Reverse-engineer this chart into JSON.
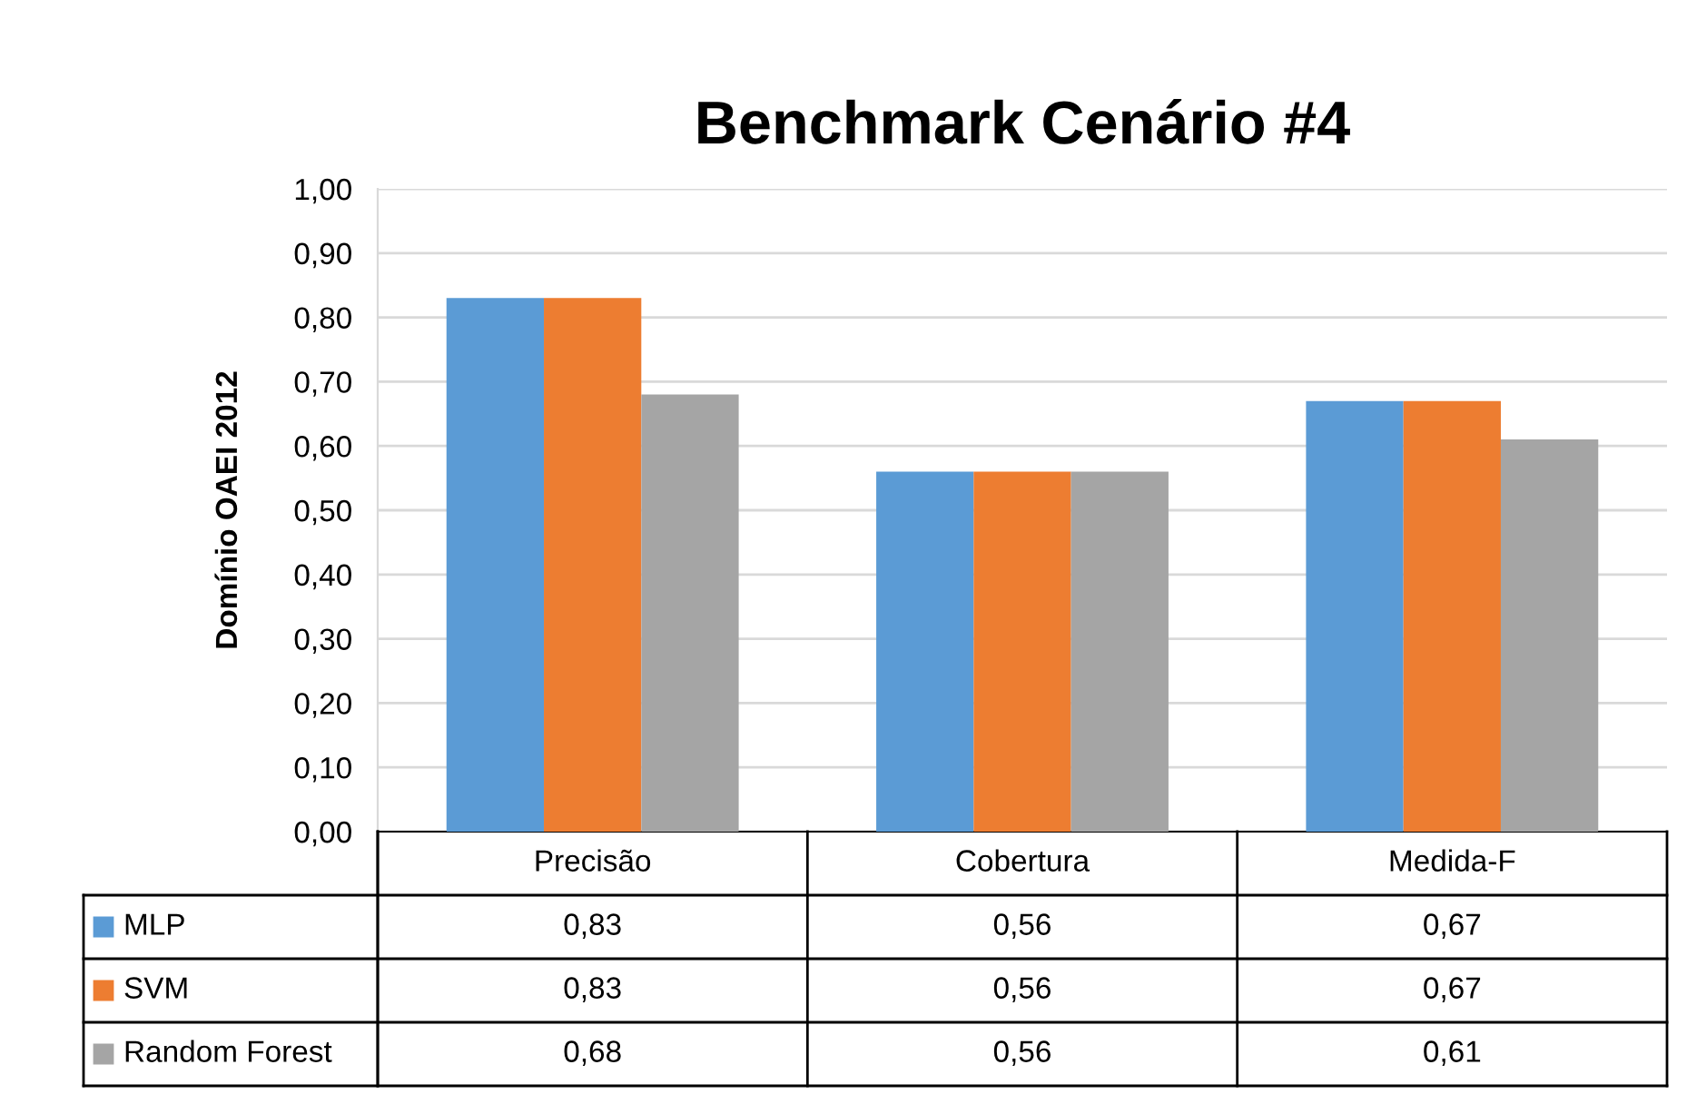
{
  "chart_data": {
    "type": "bar",
    "title": "Benchmark Cenário #4",
    "ylabel": "Domínio OAEI 2012",
    "categories": [
      "Precisão",
      "Cobertura",
      "Medida-F"
    ],
    "series": [
      {
        "name": "MLP",
        "color": "#5b9bd5",
        "values": [
          0.83,
          0.56,
          0.67
        ],
        "value_labels": [
          "0,83",
          "0,56",
          "0,67"
        ]
      },
      {
        "name": "SVM",
        "color": "#ed7d31",
        "values": [
          0.83,
          0.56,
          0.67
        ],
        "value_labels": [
          "0,83",
          "0,56",
          "0,67"
        ]
      },
      {
        "name": "Random Forest",
        "color": "#a5a5a5",
        "values": [
          0.68,
          0.56,
          0.61
        ],
        "value_labels": [
          "0,68",
          "0,56",
          "0,61"
        ]
      }
    ],
    "ylim": [
      0,
      1
    ],
    "yticks": [
      {
        "value": 0,
        "label": "0,00"
      },
      {
        "value": 0.1,
        "label": "0,10"
      },
      {
        "value": 0.2,
        "label": "0,20"
      },
      {
        "value": 0.3,
        "label": "0,30"
      },
      {
        "value": 0.4,
        "label": "0,40"
      },
      {
        "value": 0.5,
        "label": "0,50"
      },
      {
        "value": 0.6,
        "label": "0,60"
      },
      {
        "value": 0.7,
        "label": "0,70"
      },
      {
        "value": 0.8,
        "label": "0,80"
      },
      {
        "value": 0.9,
        "label": "0,90"
      },
      {
        "value": 1,
        "label": "1,00"
      }
    ],
    "grid": "y",
    "legend": "bottom"
  }
}
